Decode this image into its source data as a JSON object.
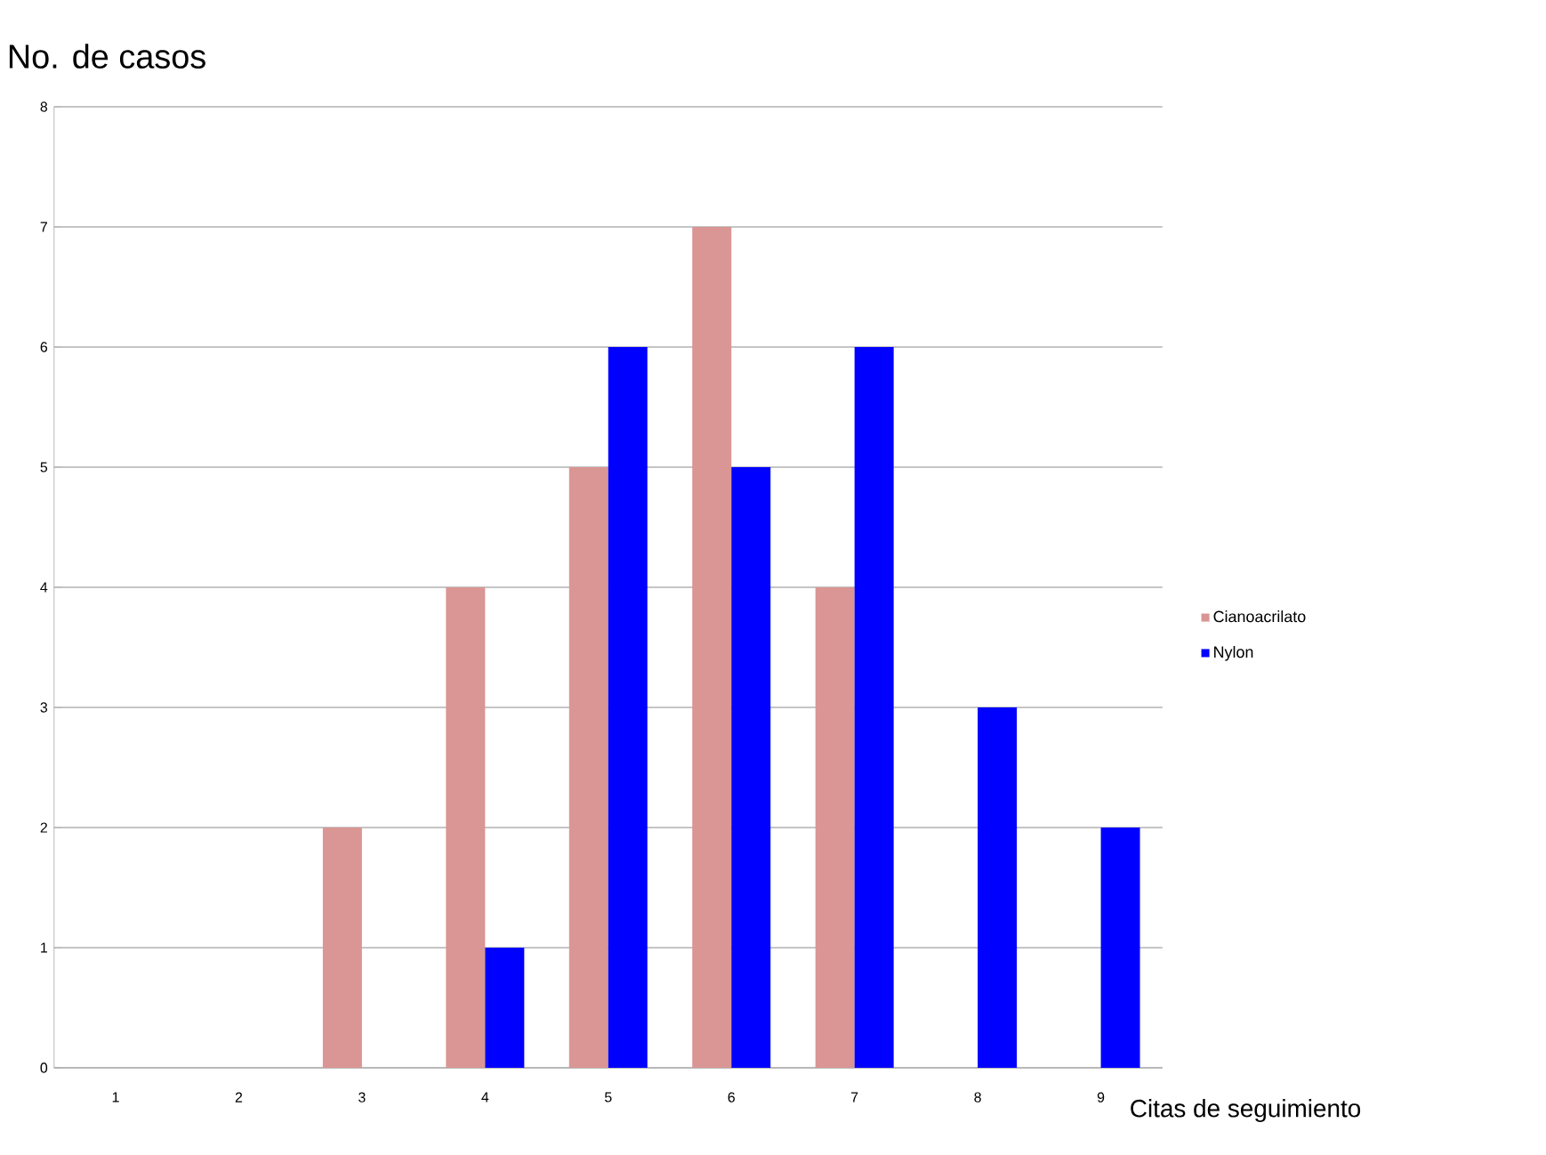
{
  "chart_data": {
    "type": "bar",
    "ylabel": "No. de casos",
    "xlabel": "Citas de seguimiento",
    "categories": [
      "1",
      "2",
      "3",
      "4",
      "5",
      "6",
      "7",
      "8",
      "9"
    ],
    "series": [
      {
        "name": "Cianoacrilato",
        "color": "#d99694",
        "values": [
          0,
          0,
          2,
          4,
          5,
          7,
          4,
          0,
          0
        ]
      },
      {
        "name": "Nylon",
        "color": "#0000ff",
        "values": [
          0,
          0,
          0,
          1,
          6,
          5,
          6,
          3,
          2
        ]
      }
    ],
    "ylim": [
      0,
      8
    ],
    "yticks": [
      0,
      1,
      2,
      3,
      4,
      5,
      6,
      7,
      8
    ],
    "grid": "y",
    "legend": "right"
  }
}
